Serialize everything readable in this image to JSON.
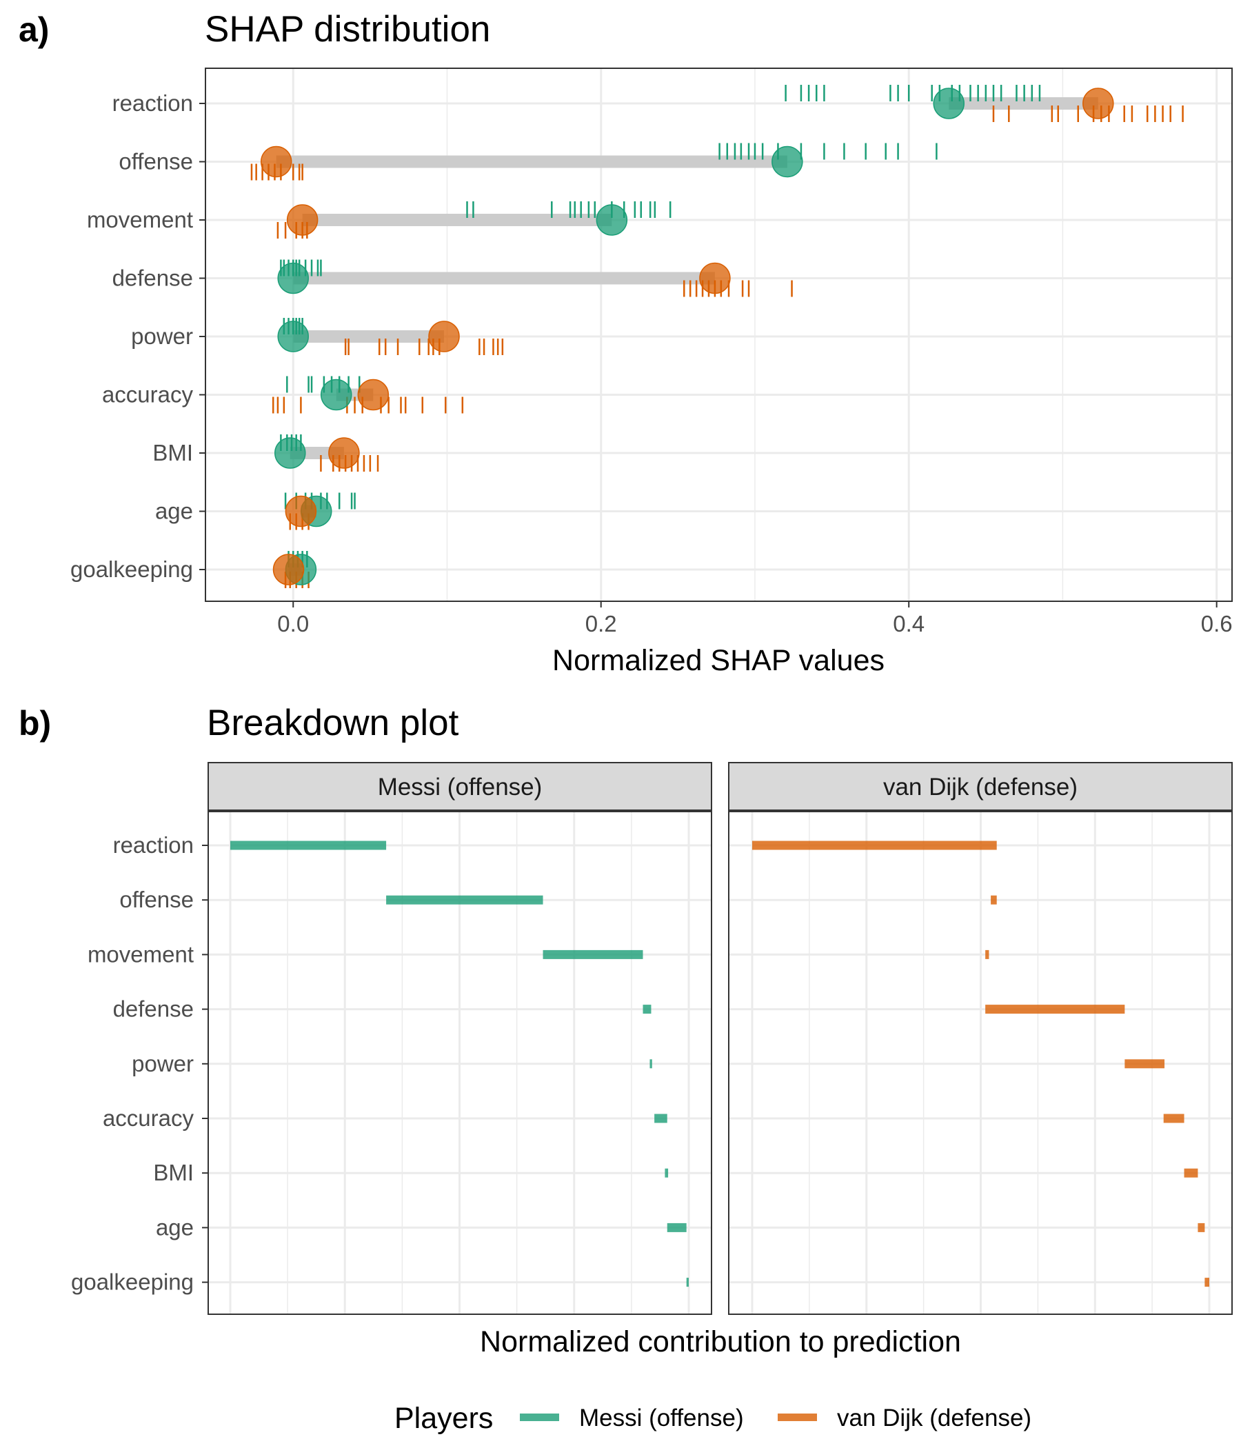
{
  "panel_a": {
    "label": "a)",
    "title": "SHAP distribution"
  },
  "panel_b": {
    "label": "b)",
    "title": "Breakdown plot"
  },
  "colors": {
    "messi": "#1b9e77",
    "vandijk": "#d95f02",
    "segment": "#cccccc",
    "grid": "#ebebeb",
    "strip": "#d9d9d9"
  },
  "legend": {
    "title": "Players",
    "items": [
      "Messi (offense)",
      "van Dijk (defense)"
    ]
  },
  "chart_data": [
    {
      "type": "scatter",
      "title": "SHAP distribution",
      "xlabel": "Normalized SHAP values",
      "ylabel": "",
      "xlim": [
        -0.057,
        0.61
      ],
      "x_ticks": [
        0.0,
        0.2,
        0.4,
        0.6
      ],
      "x_tick_labels": [
        "0.0",
        "0.2",
        "0.4",
        "0.6"
      ],
      "grid": true,
      "categories": [
        "reaction",
        "offense",
        "movement",
        "defense",
        "power",
        "accuracy",
        "BMI",
        "age",
        "goalkeeping"
      ],
      "series": [
        {
          "name": "Messi (offense)",
          "color": "#1b9e77",
          "means": [
            0.426,
            0.321,
            0.207,
            0.0,
            0.0,
            0.028,
            -0.002,
            0.015,
            0.005
          ],
          "rugs": [
            [
              0.32,
              0.33,
              0.335,
              0.34,
              0.345,
              0.388,
              0.393,
              0.4,
              0.415,
              0.42,
              0.428,
              0.433,
              0.44,
              0.445,
              0.45,
              0.455,
              0.46,
              0.47,
              0.475,
              0.48,
              0.485
            ],
            [
              0.277,
              0.282,
              0.287,
              0.291,
              0.296,
              0.3,
              0.305,
              0.315,
              0.33,
              0.345,
              0.358,
              0.372,
              0.385,
              0.393,
              0.418
            ],
            [
              0.113,
              0.117,
              0.168,
              0.18,
              0.183,
              0.187,
              0.192,
              0.196,
              0.207,
              0.215,
              0.222,
              0.226,
              0.232,
              0.235,
              0.245
            ],
            [
              -0.008,
              -0.006,
              -0.003,
              0.0,
              0.002,
              0.004,
              0.008,
              0.012,
              0.016,
              0.018
            ],
            [
              -0.006,
              -0.003,
              0.0,
              0.002,
              0.004,
              0.006
            ],
            [
              -0.004,
              0.01,
              0.012,
              0.02,
              0.025,
              0.03,
              0.036,
              0.043
            ],
            [
              -0.008,
              -0.004,
              -0.001,
              0.002,
              0.005
            ],
            [
              -0.005,
              0.002,
              0.008,
              0.012,
              0.018,
              0.022,
              0.03,
              0.038,
              0.04
            ],
            [
              -0.003,
              0.0,
              0.003,
              0.006,
              0.009
            ]
          ]
        },
        {
          "name": "van Dijk (defense)",
          "color": "#d95f02",
          "means": [
            0.523,
            -0.011,
            0.006,
            0.274,
            0.098,
            0.052,
            0.033,
            0.005,
            -0.003
          ],
          "rugs": [
            [
              0.455,
              0.465,
              0.493,
              0.497,
              0.51,
              0.52,
              0.525,
              0.53,
              0.54,
              0.545,
              0.555,
              0.56,
              0.565,
              0.57,
              0.578
            ],
            [
              -0.027,
              -0.024,
              -0.02,
              -0.016,
              -0.012,
              -0.008,
              0.0,
              0.004,
              0.006
            ],
            [
              -0.01,
              -0.005,
              0.002,
              0.006,
              0.009
            ],
            [
              0.254,
              0.258,
              0.262,
              0.266,
              0.27,
              0.274,
              0.278,
              0.283,
              0.292,
              0.296,
              0.324
            ],
            [
              0.034,
              0.036,
              0.056,
              0.06,
              0.068,
              0.082,
              0.088,
              0.091,
              0.095,
              0.121,
              0.124,
              0.13,
              0.133,
              0.136
            ],
            [
              -0.013,
              -0.01,
              -0.006,
              0.005,
              0.035,
              0.04,
              0.045,
              0.057,
              0.062,
              0.07,
              0.073,
              0.084,
              0.099,
              0.11
            ],
            [
              0.018,
              0.026,
              0.03,
              0.034,
              0.038,
              0.042,
              0.046,
              0.05,
              0.055
            ],
            [
              -0.002,
              0.002,
              0.006,
              0.01
            ],
            [
              -0.005,
              -0.002,
              0.002,
              0.006,
              0.01
            ]
          ]
        }
      ]
    },
    {
      "type": "bar",
      "title": "Breakdown plot",
      "xlabel": "Normalized contribution to prediction",
      "ylabel": "",
      "xlim": [
        0.0,
        1.0
      ],
      "categories": [
        "reaction",
        "offense",
        "movement",
        "defense",
        "power",
        "accuracy",
        "BMI",
        "age",
        "goalkeeping"
      ],
      "facets": [
        {
          "name": "Messi (offense)",
          "color": "#1b9e77",
          "starts": [
            0.0,
            0.34,
            0.682,
            0.9,
            0.915,
            0.925,
            0.948,
            0.953,
            0.995
          ],
          "ends": [
            0.34,
            0.682,
            0.9,
            0.918,
            0.92,
            0.953,
            0.955,
            0.995,
            1.0
          ]
        },
        {
          "name": "van Dijk (defense)",
          "color": "#d95f02",
          "starts": [
            0.0,
            0.522,
            0.51,
            0.51,
            0.815,
            0.9,
            0.945,
            0.975,
            0.99
          ],
          "ends": [
            0.535,
            0.535,
            0.518,
            0.815,
            0.902,
            0.945,
            0.975,
            0.99,
            1.0
          ]
        }
      ]
    }
  ]
}
